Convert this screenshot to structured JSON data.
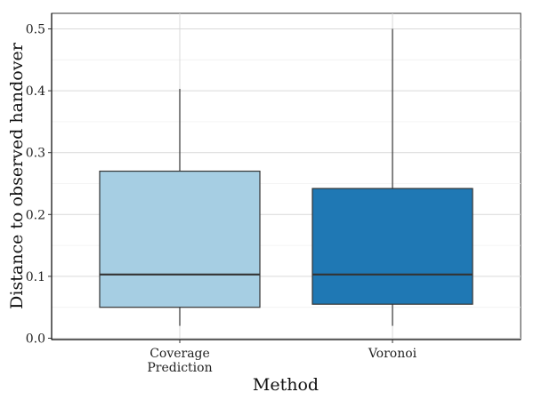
{
  "chart_data": {
    "type": "box",
    "xlabel": "Method",
    "ylabel": "Distance to observed handover",
    "ylim": [
      0.0,
      0.52
    ],
    "yticks": [
      "0.0",
      "0.1",
      "0.2",
      "0.3",
      "0.4",
      "0.5"
    ],
    "grid": true,
    "categories": [
      [
        "Coverage",
        "Prediction"
      ],
      [
        "Voronoi"
      ]
    ],
    "boxes": [
      {
        "category": "Coverage Prediction",
        "min": 0.02,
        "q1": 0.05,
        "median": 0.103,
        "q3": 0.27,
        "max": 0.403,
        "color": "#a6cee3"
      },
      {
        "category": "Voronoi",
        "min": 0.02,
        "q1": 0.055,
        "median": 0.103,
        "q3": 0.242,
        "max": 0.5,
        "color": "#1f78b4"
      }
    ]
  }
}
